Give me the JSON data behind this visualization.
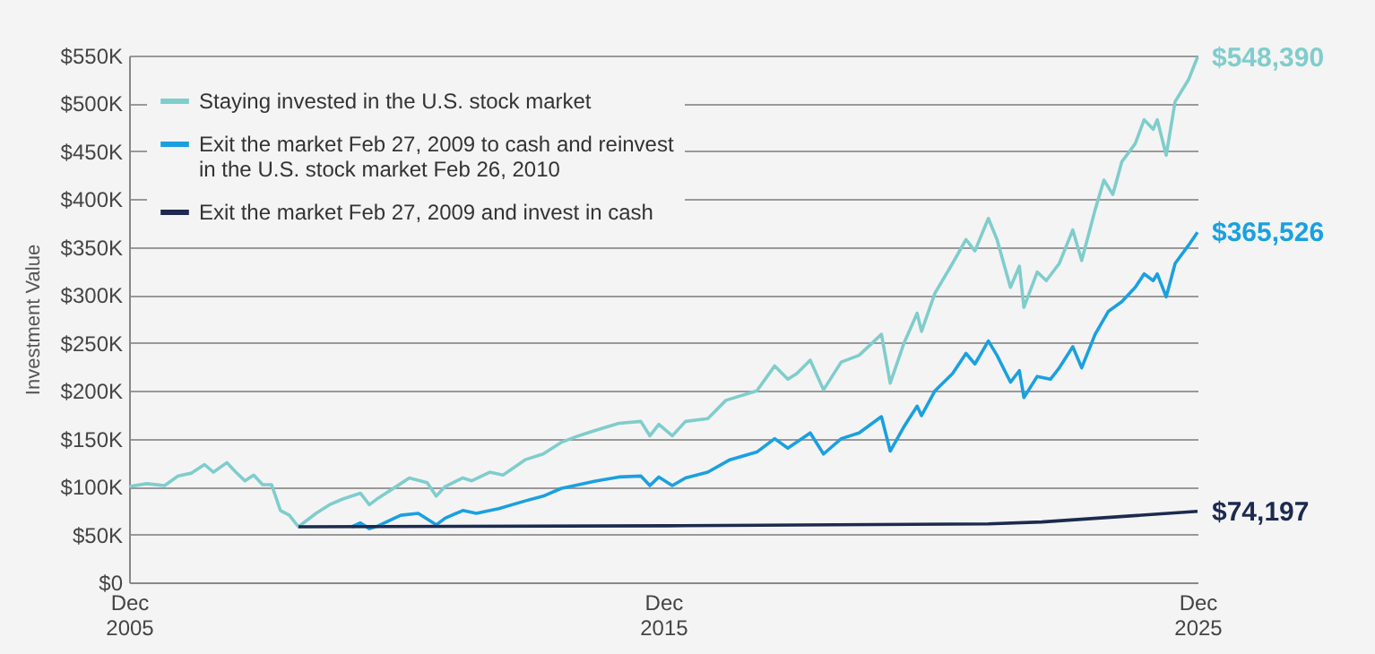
{
  "chart_data": {
    "type": "line",
    "ylabel": "Investment Value",
    "xlim": [
      "2005-12",
      "2025-12"
    ],
    "xticks": [
      {
        "value": "2005-12",
        "label": "Dec\n2005"
      },
      {
        "value": "2015-12",
        "label": "Dec\n2015"
      },
      {
        "value": "2025-12",
        "label": "Dec\n2025"
      }
    ],
    "ylim": [
      0,
      550
    ],
    "yticks": [
      {
        "value": 0,
        "label": "$0"
      },
      {
        "value": 50,
        "label": "$50K"
      },
      {
        "value": 100,
        "label": "$100K"
      },
      {
        "value": 150,
        "label": "$150K"
      },
      {
        "value": 200,
        "label": "$200K"
      },
      {
        "value": 250,
        "label": "$250K"
      },
      {
        "value": 300,
        "label": "$300K"
      },
      {
        "value": 350,
        "label": "$350K"
      },
      {
        "value": 400,
        "label": "$400K"
      },
      {
        "value": 450,
        "label": "$450K"
      },
      {
        "value": 500,
        "label": "$500K"
      },
      {
        "value": 550,
        "label": "$550K"
      }
    ],
    "grid": "y",
    "legend": "top left",
    "marker": "none",
    "line_style": "solid",
    "series": [
      {
        "name": "Staying invested in the U.S. stock market",
        "color": "#7fcdcc",
        "x": [
          "2005-12",
          "2006-04",
          "2006-08",
          "2006-11",
          "2007-02",
          "2007-05",
          "2007-07",
          "2007-10",
          "2007-12",
          "2008-02",
          "2008-04",
          "2008-06",
          "2008-08",
          "2008-10",
          "2008-12",
          "2009-02",
          "2009-06",
          "2009-09",
          "2009-12",
          "2010-04",
          "2010-06",
          "2010-08",
          "2011-01",
          "2011-03",
          "2011-07",
          "2011-09",
          "2011-11",
          "2012-03",
          "2012-05",
          "2012-09",
          "2012-12",
          "2013-05",
          "2013-09",
          "2014-01",
          "2014-05",
          "2014-09",
          "2015-02",
          "2015-07",
          "2015-09",
          "2015-11",
          "2016-02",
          "2016-05",
          "2016-10",
          "2017-02",
          "2017-09",
          "2018-01",
          "2018-04",
          "2018-06",
          "2018-09",
          "2018-12",
          "2019-04",
          "2019-08",
          "2020-01",
          "2020-03",
          "2020-06",
          "2020-09",
          "2020-10",
          "2021-01",
          "2021-05",
          "2021-08",
          "2021-10",
          "2022-01",
          "2022-03",
          "2022-06",
          "2022-08",
          "2022-09",
          "2022-12",
          "2023-02",
          "2023-05",
          "2023-08",
          "2023-10",
          "2024-01",
          "2024-03",
          "2024-05",
          "2024-07",
          "2024-10",
          "2024-12",
          "2025-02",
          "2025-03",
          "2025-05",
          "2025-07",
          "2025-10",
          "2025-12"
        ],
        "values": [
          100,
          103,
          101,
          111,
          114,
          123,
          115,
          125,
          115,
          106,
          112,
          102,
          102,
          75,
          70,
          58,
          72,
          81,
          87,
          93,
          81,
          88,
          103,
          109,
          104,
          90,
          100,
          109,
          106,
          115,
          112,
          128,
          134,
          146,
          153,
          159,
          166,
          168,
          153,
          165,
          153,
          168,
          171,
          190,
          200,
          226,
          212,
          218,
          232,
          201,
          230,
          237,
          259,
          208,
          249,
          281,
          262,
          302,
          333,
          358,
          346,
          380,
          358,
          308,
          330,
          287,
          324,
          315,
          333,
          368,
          336,
          389,
          420,
          405,
          439,
          458,
          483,
          473,
          483,
          446,
          502,
          525,
          548.39
        ]
      },
      {
        "name": "Exit the market Feb 27, 2009 to cash and reinvest in the U.S. stock market Feb 26, 2010",
        "color": "#1aa0e0",
        "x": [
          "2010-02",
          "2010-04",
          "2010-06",
          "2010-08",
          "2011-01",
          "2011-05",
          "2011-09",
          "2011-11",
          "2012-03",
          "2012-06",
          "2012-11",
          "2013-05",
          "2013-09",
          "2014-01",
          "2014-09",
          "2015-02",
          "2015-07",
          "2015-09",
          "2015-11",
          "2016-02",
          "2016-05",
          "2016-10",
          "2017-03",
          "2017-09",
          "2018-01",
          "2018-04",
          "2018-09",
          "2018-12",
          "2019-04",
          "2019-08",
          "2020-01",
          "2020-03",
          "2020-06",
          "2020-09",
          "2020-10",
          "2021-01",
          "2021-05",
          "2021-08",
          "2021-10",
          "2022-01",
          "2022-03",
          "2022-06",
          "2022-08",
          "2022-09",
          "2022-12",
          "2023-03",
          "2023-05",
          "2023-08",
          "2023-10",
          "2024-01",
          "2024-04",
          "2024-07",
          "2024-10",
          "2024-12",
          "2025-02",
          "2025-03",
          "2025-05",
          "2025-07",
          "2025-10",
          "2025-12"
        ],
        "values": [
          58,
          62,
          56,
          59,
          70,
          72,
          60,
          67,
          75,
          72,
          77,
          85,
          90,
          98,
          106,
          110,
          111,
          101,
          110,
          101,
          109,
          115,
          128,
          136,
          150,
          140,
          156,
          134,
          150,
          156,
          173,
          137,
          162,
          184,
          174,
          200,
          218,
          239,
          228,
          252,
          237,
          209,
          221,
          193,
          215,
          212,
          224,
          246,
          224,
          259,
          283,
          293,
          308,
          322,
          315,
          322,
          298,
          333,
          352,
          365.526
        ]
      },
      {
        "name": "Exit the market Feb 27, 2009 and invest in cash",
        "color": "#1c2a4f",
        "x": [
          "2009-02",
          "2016-01",
          "2022-01",
          "2023-01",
          "2025-12"
        ],
        "values": [
          58,
          59,
          61,
          63,
          74.197
        ]
      }
    ],
    "annotations": [
      {
        "text": "$548,390",
        "x": "2025-12",
        "y": 548.39
      },
      {
        "text": "$365,526",
        "x": "2025-12",
        "y": 365.526
      },
      {
        "text": "$74,197",
        "x": "2025-12",
        "y": 74.197
      }
    ]
  }
}
